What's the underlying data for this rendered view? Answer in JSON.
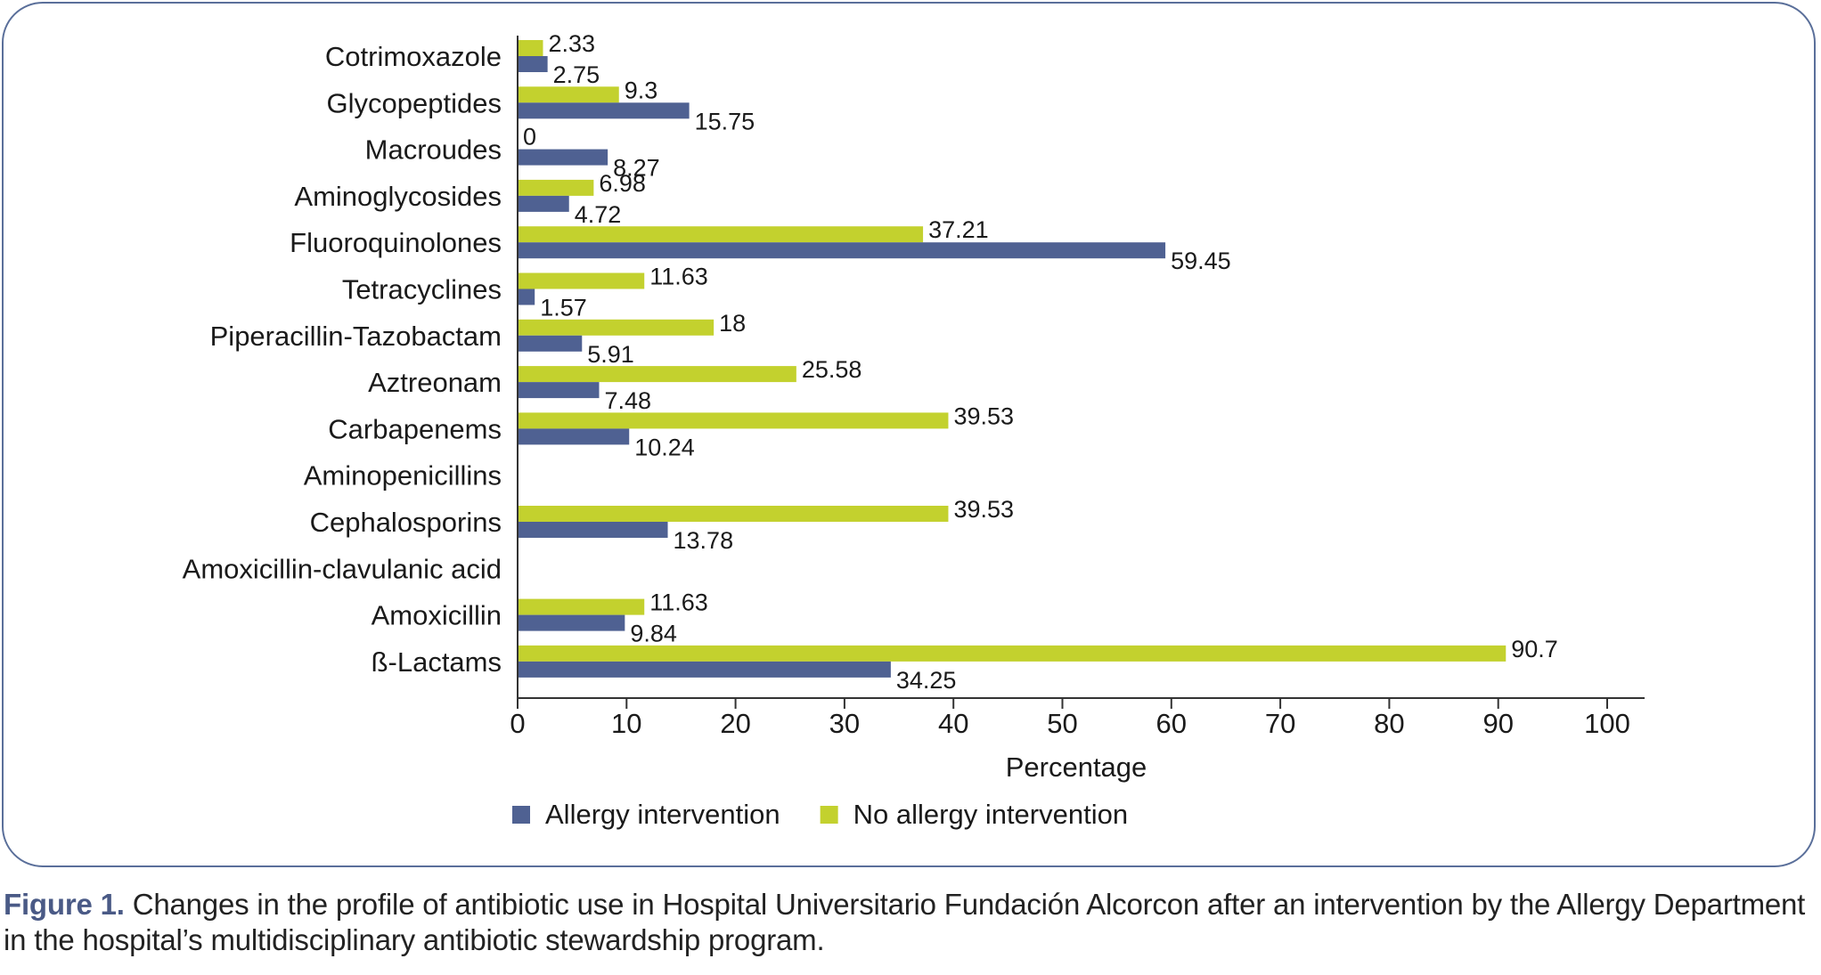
{
  "chart_data": {
    "type": "bar",
    "orientation": "horizontal",
    "categories": [
      "Cotrimoxazole",
      "Glycopeptides",
      "Macroudes",
      "Aminoglycosides",
      "Fluoroquinolones",
      "Tetracyclines",
      "Piperacillin-Tazobactam",
      "Aztreonam",
      "Carbapenems",
      "Aminopenicillins",
      "Cephalosporins",
      "Amoxicillin-clavulanic acid",
      "Amoxicillin",
      "ß-Lactams"
    ],
    "series": [
      {
        "name": "No allergy intervention",
        "color": "#c3d12e",
        "values": [
          2.33,
          9.3,
          0,
          6.98,
          37.21,
          11.63,
          18,
          25.58,
          39.53,
          null,
          39.53,
          null,
          11.63,
          90.7
        ],
        "labels": [
          "2.33",
          "9.3",
          "0",
          "6.98",
          "37.21",
          "11.63",
          "18",
          "25.58",
          "39.53",
          null,
          "39.53",
          null,
          "11.63",
          "90.7"
        ]
      },
      {
        "name": "Allergy intervention",
        "color": "#4f6192",
        "values": [
          2.75,
          15.75,
          8.27,
          4.72,
          59.45,
          1.57,
          5.91,
          7.48,
          10.24,
          null,
          13.78,
          null,
          9.84,
          34.25
        ],
        "labels": [
          "2.75",
          "15.75",
          "8.27",
          "4.72",
          "59.45",
          "1.57",
          "5.91",
          "7.48",
          "10.24",
          null,
          "13.78",
          null,
          "9.84",
          "34.25"
        ]
      }
    ],
    "xlabel": "Percentage",
    "ylabel": "",
    "xlim": [
      0,
      100
    ],
    "xticks": [
      0,
      10,
      20,
      30,
      40,
      50,
      60,
      70,
      80,
      90,
      100
    ],
    "grid": false,
    "legend": {
      "position": "bottom",
      "order": [
        "Allergy intervention",
        "No allergy intervention"
      ]
    }
  },
  "caption": {
    "lead": "Figure 1.",
    "text": " Changes in the profile of antibiotic use in Hospital Universitario Fundación Alcorcon after an intervention by the Allergy Department in the hospital’s multidisciplinary antibiotic stewardship program."
  }
}
